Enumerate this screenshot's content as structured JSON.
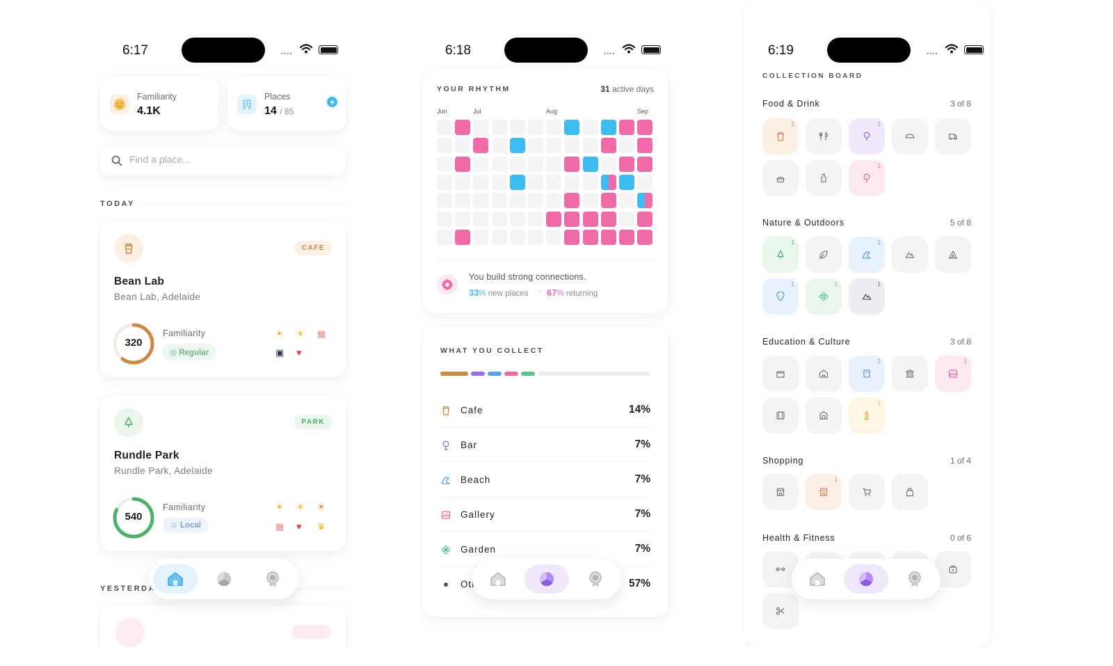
{
  "status": {
    "times": [
      "6:17",
      "6:18",
      "6:19"
    ],
    "signal": "••••"
  },
  "home": {
    "familiarity": {
      "label": "Familiarity",
      "value": "4.1K"
    },
    "places": {
      "label": "Places",
      "value": "14",
      "total": "/ 85"
    },
    "search": {
      "placeholder": "Find a place..."
    },
    "today_label": "TODAY",
    "yesterday_label": "YESTERDAY",
    "cards": [
      {
        "name": "Bean Lab",
        "address": "Bean Lab, Adelaide",
        "tag": "CAFE",
        "score": "320",
        "familiarity_label": "Familiarity",
        "level": "Regular",
        "progress": 0.6,
        "color": "#c98a45"
      },
      {
        "name": "Rundle Park",
        "address": "Rundle Park, Adelaide",
        "tag": "PARK",
        "score": "540",
        "familiarity_label": "Familiarity",
        "level": "Local",
        "progress": 0.82,
        "color": "#4caf6b"
      }
    ]
  },
  "rhythm": {
    "title": "YOUR RHYTHM",
    "active_days": "31",
    "active_days_label": "active days",
    "months": [
      "Jun",
      "Jul",
      "Aug",
      "Sep"
    ],
    "grid": [
      "0p00000b0bpp",
      "00p0b0000p0p",
      "0p00000pb0pp",
      "0000b0000ab0",
      "0000000p0p0a",
      "000000pppp0p",
      "0p00000ppppp"
    ],
    "grid_legend": {
      "0": "none",
      "p": "returning",
      "b": "new",
      "a": "both"
    },
    "message": "You build strong connections.",
    "new_pct": "33",
    "new_label": "new places",
    "returning_pct": "67",
    "returning_label": "returning",
    "colors": {
      "new": "#3cbcf0",
      "returning": "#f06aaa"
    }
  },
  "collect": {
    "title": "WHAT YOU COLLECT",
    "rows": [
      {
        "name": "Cafe",
        "pct": "14%",
        "icon": "cup-icon",
        "color": "#c98a45"
      },
      {
        "name": "Bar",
        "pct": "7%",
        "icon": "wine-glass-icon",
        "color": "#9b6bea"
      },
      {
        "name": "Beach",
        "pct": "7%",
        "icon": "wave-icon",
        "color": "#5aa0e8"
      },
      {
        "name": "Gallery",
        "pct": "7%",
        "icon": "picture-icon",
        "color": "#ea6aa0"
      },
      {
        "name": "Garden",
        "pct": "7%",
        "icon": "flower-icon",
        "color": "#5cc08a"
      },
      {
        "name": "Other",
        "pct": "57%",
        "icon": "dot-icon",
        "color": "#555555"
      }
    ]
  },
  "board": {
    "title": "COLLECTION BOARD",
    "categories": [
      {
        "name": "Food & Drink",
        "count": "3 of 8"
      },
      {
        "name": "Nature & Outdoors",
        "count": "5 of 8"
      },
      {
        "name": "Education & Culture",
        "count": "3 of 8"
      },
      {
        "name": "Shopping",
        "count": "1 of 4"
      },
      {
        "name": "Health & Fitness",
        "count": "0 of 6"
      }
    ],
    "badge_counts": {
      "food_cafe": "2",
      "food_bar": "1",
      "food_wine": "1",
      "nat_tree": "1",
      "nat_beach": "1",
      "nat_pin": "1",
      "nat_garden": "1",
      "nat_mountain": "1",
      "edu_library": "1",
      "edu_gallery": "1",
      "edu_monument": "1",
      "shop_store": "1"
    }
  }
}
